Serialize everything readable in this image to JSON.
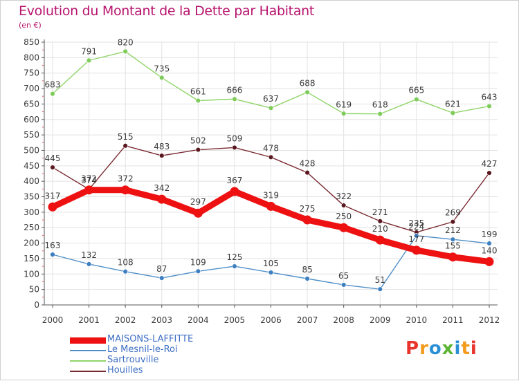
{
  "header": {
    "title": "Evolution du Montant de la Dette par Habitant",
    "subtitle": "(en €)"
  },
  "logo": {
    "text": "Proxiti",
    "letter_colors": [
      "#e8342c",
      "#f39b1a",
      "#2b8fd6",
      "#5cb533",
      "#2b8fd6",
      "#f39b1a",
      "#e8342c"
    ]
  },
  "colors": {
    "title": "#b8146e",
    "axis": "#555555",
    "grid": "#e2e2e2",
    "label": "#3a3a3a",
    "legend_text": "#3e6fc4"
  },
  "chart_data": {
    "type": "line",
    "title": "Evolution du Montant de la Dette par Habitant",
    "subtitle": "(en €)",
    "xlabel": "",
    "ylabel": "",
    "ylim": [
      0,
      850
    ],
    "yticks": [
      0,
      50,
      100,
      150,
      200,
      250,
      300,
      350,
      400,
      450,
      500,
      550,
      600,
      650,
      700,
      750,
      800,
      850
    ],
    "grid": true,
    "legend_position": "bottom-left",
    "categories": [
      "2000",
      "2001",
      "2002",
      "2003",
      "2004",
      "2005",
      "2006",
      "2007",
      "2008",
      "2009",
      "2010",
      "2011",
      "2012"
    ],
    "series": [
      {
        "name": "Sartrouville",
        "color": "#8fd468",
        "marker": "#7ecb5a",
        "weight": "thin",
        "values": [
          683,
          791,
          820,
          735,
          661,
          666,
          637,
          688,
          619,
          618,
          665,
          621,
          643
        ]
      },
      {
        "name": "Houilles",
        "color": "#7a2a32",
        "marker": "#5a1820",
        "weight": "thin",
        "values": [
          445,
          374,
          515,
          483,
          502,
          509,
          478,
          428,
          322,
          271,
          235,
          269,
          427
        ]
      },
      {
        "name": "Le Mesnil-le-Roi",
        "color": "#4f8fc8",
        "marker": "#3d7fc0",
        "weight": "thin",
        "values": [
          163,
          132,
          108,
          87,
          109,
          125,
          105,
          85,
          65,
          51,
          224,
          212,
          199
        ]
      },
      {
        "name": "MAISONS-LAFFITTE",
        "color": "#ee1111",
        "marker": "#ee1111",
        "weight": "thick",
        "values": [
          317,
          372,
          372,
          342,
          297,
          367,
          319,
          275,
          250,
          210,
          177,
          155,
          140
        ]
      }
    ]
  },
  "legend": [
    {
      "name": "MAISONS-LAFFITTE",
      "color": "#ee1111",
      "weight": "thick"
    },
    {
      "name": "Le Mesnil-le-Roi",
      "color": "#4f8fc8",
      "weight": "thin"
    },
    {
      "name": "Sartrouville",
      "color": "#8fd468",
      "weight": "thin"
    },
    {
      "name": "Houilles",
      "color": "#7a2a32",
      "weight": "thin"
    }
  ]
}
